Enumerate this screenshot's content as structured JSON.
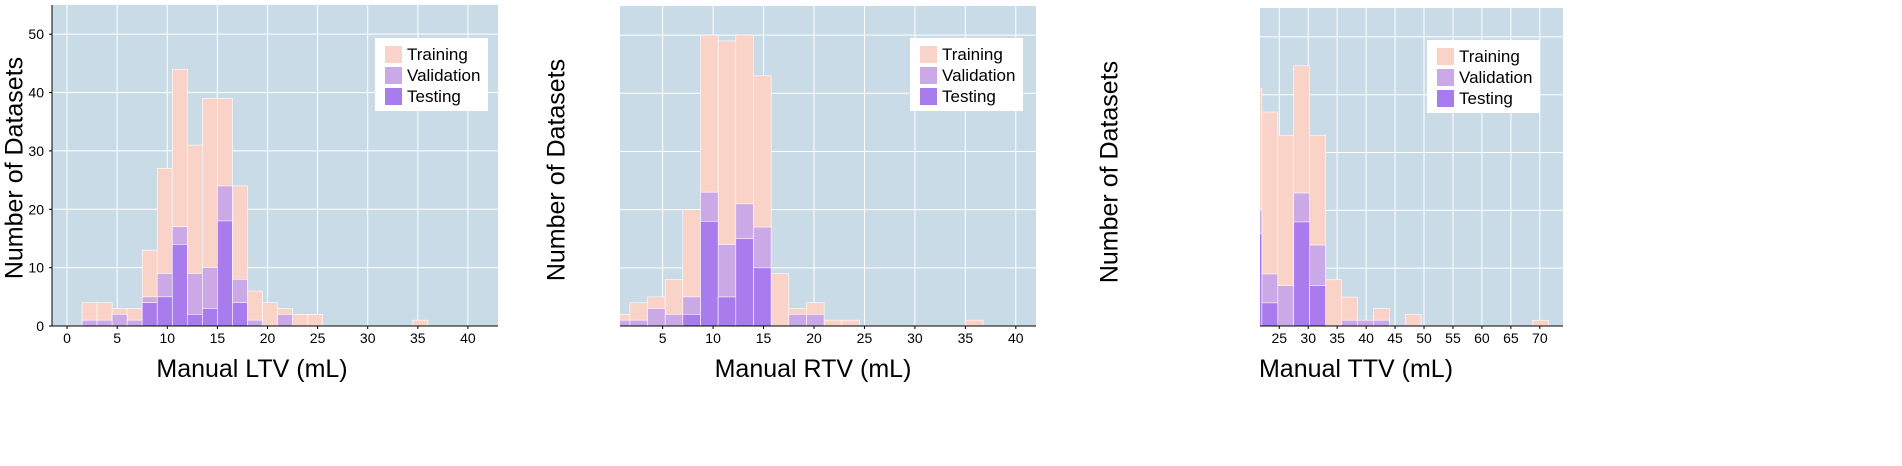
{
  "colors": {
    "background": "#c9dbe6",
    "grid": "#ffffff",
    "training": "#fad3c8",
    "validation": "#cba8e6",
    "testing": "#a87ced"
  },
  "legend": [
    "Training",
    "Validation",
    "Testing"
  ],
  "chart_data": [
    {
      "type": "bar",
      "stacking": "overlay",
      "title": "",
      "xlabel": "Manual LTV (mL)",
      "ylabel": "Number of Datasets",
      "xlim": [
        -1.5,
        43
      ],
      "ylim": [
        0,
        55
      ],
      "xticks": [
        0,
        5,
        10,
        15,
        20,
        25,
        30,
        35,
        40
      ],
      "yticks": [
        0,
        10,
        20,
        30,
        40,
        50
      ],
      "bin_width": 1.5,
      "bin_starts": [
        1.5,
        3,
        4.5,
        6,
        7.5,
        9,
        10.5,
        12,
        13.5,
        15,
        16.5,
        18,
        19.5,
        21,
        22.5,
        24,
        34.5
      ],
      "series": [
        {
          "name": "Training",
          "values": [
            4,
            4,
            3,
            3,
            13,
            27,
            44,
            31,
            39,
            39,
            24,
            6,
            4,
            3,
            2,
            2,
            1
          ]
        },
        {
          "name": "Validation",
          "values": [
            1,
            1,
            2,
            1,
            5,
            9,
            17,
            9,
            10,
            24,
            8,
            1,
            0,
            2,
            0,
            0,
            0
          ]
        },
        {
          "name": "Testing",
          "values": [
            0,
            0,
            0,
            0,
            4,
            5,
            14,
            2,
            3,
            18,
            4,
            0,
            0,
            0,
            0,
            0,
            0
          ]
        }
      ]
    },
    {
      "type": "bar",
      "stacking": "overlay",
      "title": "",
      "xlabel": "Manual RTV (mL)",
      "ylabel": "Number of Datasets",
      "xlim": [
        -2,
        42
      ],
      "ylim": [
        0,
        55
      ],
      "xticks": [
        0,
        5,
        10,
        15,
        20,
        25,
        30,
        35,
        40
      ],
      "yticks": [
        0,
        10,
        20,
        30,
        40,
        50
      ],
      "bin_width": 1.75,
      "bin_starts": [
        0,
        1.75,
        3.5,
        5.25,
        7,
        8.75,
        10.5,
        12.25,
        14,
        15.75,
        17.5,
        19.25,
        21,
        22.75,
        24.5,
        26.25,
        35
      ],
      "series": [
        {
          "name": "Training",
          "values": [
            2,
            4,
            5,
            8,
            20,
            50,
            49,
            50,
            43,
            9,
            3,
            4,
            1,
            1,
            0,
            0,
            1
          ]
        },
        {
          "name": "Validation",
          "values": [
            1,
            1,
            3,
            2,
            5,
            23,
            14,
            21,
            17,
            0,
            2,
            2,
            0,
            0,
            0,
            0,
            0
          ]
        },
        {
          "name": "Testing",
          "values": [
            0,
            0,
            0,
            0,
            2,
            18,
            5,
            15,
            10,
            0,
            0,
            0,
            0,
            0,
            0,
            0,
            0
          ]
        }
      ]
    },
    {
      "type": "bar",
      "stacking": "overlay",
      "title": "",
      "xlabel": "Manual TTV (mL)",
      "ylabel": "Number of Datasets",
      "xlim": [
        -2.5,
        74
      ],
      "ylim": [
        0,
        55
      ],
      "xticks": [
        0,
        5,
        10,
        15,
        20,
        25,
        30,
        35,
        40,
        45,
        50,
        55,
        60,
        65,
        70
      ],
      "yticks": [
        0,
        10,
        20,
        30,
        40,
        50
      ],
      "bin_width": 2.75,
      "bin_starts": [
        2.75,
        5.5,
        8.25,
        11,
        13.75,
        16.5,
        19.25,
        22,
        24.75,
        27.5,
        30.25,
        33,
        35.75,
        38.5,
        41.25,
        46.75,
        68.75
      ],
      "series": [
        {
          "name": "Training",
          "values": [
            3,
            4,
            4,
            2,
            11,
            17,
            41,
            37,
            33,
            45,
            33,
            8,
            5,
            1,
            3,
            2,
            1
          ]
        },
        {
          "name": "Validation",
          "values": [
            1,
            1,
            2,
            1,
            3,
            6,
            20,
            9,
            7,
            23,
            14,
            0,
            1,
            1,
            1,
            0,
            0
          ]
        },
        {
          "name": "Testing",
          "values": [
            0,
            0,
            0,
            0,
            1,
            4,
            16,
            4,
            0,
            18,
            7,
            0,
            0,
            0,
            0,
            0,
            0
          ]
        }
      ]
    }
  ]
}
